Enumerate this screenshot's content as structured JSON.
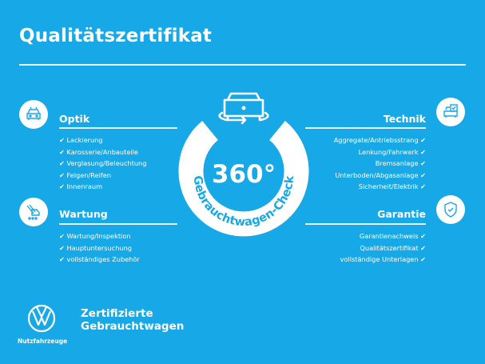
{
  "title": "Qualitätszertifikat",
  "check_glyph": "✔",
  "badge": {
    "number": "360°",
    "arc_text": "Gebrauchtwagen-Check",
    "icon": "car-rotate-icon"
  },
  "sections": {
    "optik": {
      "heading": "Optik",
      "icon": "car-front-icon",
      "items": [
        "Lackierung",
        "Karosserie/Anbauteile",
        "Verglasung/Beleuchtung",
        "Felgen/Reifen",
        "Innenraum"
      ]
    },
    "wartung": {
      "heading": "Wartung",
      "icon": "car-service-icon",
      "items": [
        "Wartung/Inspektion",
        "Hauptuntersuchung",
        "vollständiges Zubehör"
      ]
    },
    "technik": {
      "heading": "Technik",
      "icon": "car-checklist-icon",
      "items": [
        "Aggregate/Antriebsstrang",
        "Lenkung/Fahrwerk",
        "Bremsanlage",
        "Unterboden/Abgasanlage",
        "Sicherheit/Elektrik"
      ]
    },
    "garantie": {
      "heading": "Garantie",
      "icon": "shield-check-icon",
      "items": [
        "Garantienachweis",
        "Qualitätszertifikat",
        "vollständige Unterlagen"
      ]
    }
  },
  "footer": {
    "brand_line1": "Zertifizierte",
    "brand_line2": "Gebrauchtwagen",
    "logo_caption": "Nutzfahrzeuge"
  },
  "colors": {
    "background": "#17a8e8",
    "foreground": "#ffffff"
  }
}
